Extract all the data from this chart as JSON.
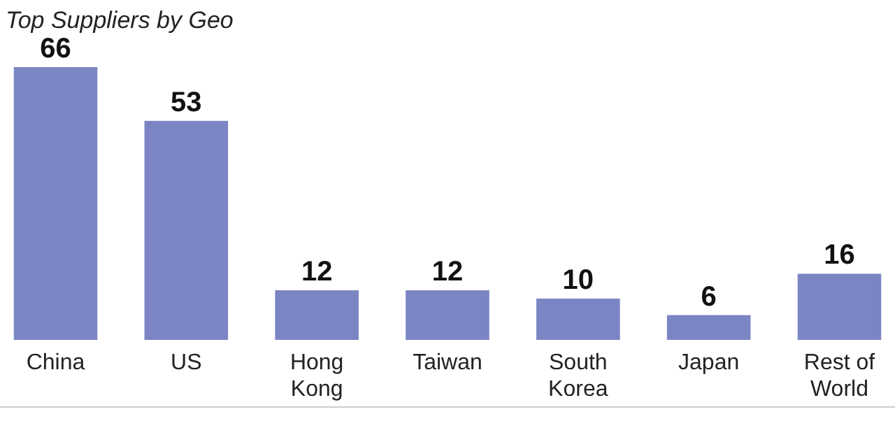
{
  "chart_data": {
    "type": "bar",
    "title": "Top Suppliers by Geo",
    "categories": [
      "China",
      "US",
      "Hong Kong",
      "Taiwan",
      "South Korea",
      "Japan",
      "Rest of World"
    ],
    "values": [
      66,
      53,
      12,
      12,
      10,
      6,
      16
    ],
    "color": "#7b85c4",
    "data_labels": true
  }
}
